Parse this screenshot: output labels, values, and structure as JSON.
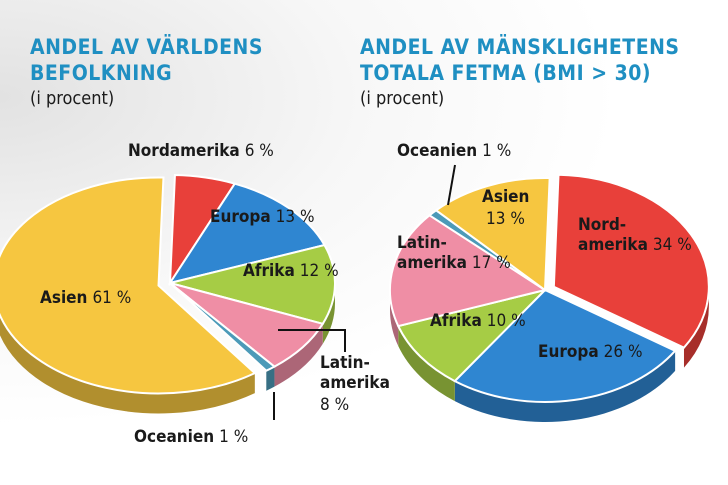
{
  "chart_data": [
    {
      "type": "pie",
      "title": "ANDEL AV VÄRLDENS BEFOLKNING",
      "title_lines": [
        "ANDEL AV VÄRLDENS",
        "BEFOLKNING"
      ],
      "subtitle": "(i procent)",
      "unit": "%",
      "slices": [
        {
          "label": "Nordamerika",
          "label_lines": [
            "Nordamerika"
          ],
          "value": 6,
          "value_text": "6 %",
          "color": "#e8403a"
        },
        {
          "label": "Europa",
          "label_lines": [
            "Europa"
          ],
          "value": 13,
          "value_text": "13 %",
          "color": "#2f86d1"
        },
        {
          "label": "Afrika",
          "label_lines": [
            "Afrika"
          ],
          "value": 12,
          "value_text": "12 %",
          "color": "#a6cc45"
        },
        {
          "label": "Latinamerika",
          "label_lines": [
            "Latin-",
            "amerika"
          ],
          "value": 8,
          "value_text": "8 %",
          "color": "#ef8ea5"
        },
        {
          "label": "Oceanien",
          "label_lines": [
            "Oceanien"
          ],
          "value": 1,
          "value_text": "1 %",
          "color": "#4c9ab8"
        },
        {
          "label": "Asien",
          "label_lines": [
            "Asien"
          ],
          "value": 61,
          "value_text": "61 %",
          "color": "#f6c640"
        }
      ]
    },
    {
      "type": "pie",
      "title": "ANDEL AV MÄNSKLIGHETENS TOTALA FETMA (BMI > 30)",
      "title_lines": [
        "ANDEL AV MÄNSKLIGHETENS",
        "TOTALA FETMA (BMI > 30)"
      ],
      "subtitle": "(i procent)",
      "unit": "%",
      "slices": [
        {
          "label": "Nordamerika",
          "label_lines": [
            "Nord-",
            "amerika"
          ],
          "value": 34,
          "value_text": "34 %",
          "color": "#e8403a"
        },
        {
          "label": "Europa",
          "label_lines": [
            "Europa"
          ],
          "value": 26,
          "value_text": "26 %",
          "color": "#2f86d1"
        },
        {
          "label": "Afrika",
          "label_lines": [
            "Afrika"
          ],
          "value": 10,
          "value_text": "10 %",
          "color": "#a6cc45"
        },
        {
          "label": "Latinamerika",
          "label_lines": [
            "Latin-",
            "amerika"
          ],
          "value": 17,
          "value_text": "17 %",
          "color": "#ef8ea5"
        },
        {
          "label": "Oceanien",
          "label_lines": [
            "Oceanien"
          ],
          "value": 1,
          "value_text": "1 %",
          "color": "#4c9ab8"
        },
        {
          "label": "Asien",
          "label_lines": [
            "Asien"
          ],
          "value": 13,
          "value_text": "13 %",
          "color": "#f6c640"
        }
      ]
    }
  ]
}
